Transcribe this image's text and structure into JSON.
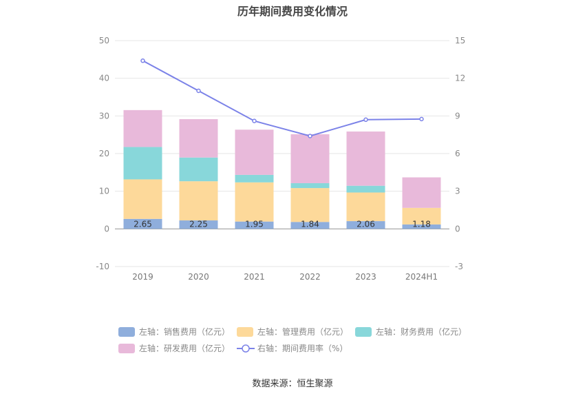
{
  "title": "历年期间费用变化情况",
  "source": "数据来源：恒生聚源",
  "colors": {
    "sales": "#8FAEDC",
    "admin": "#FDD99A",
    "finance": "#88D7DA",
    "rnd": "#E8B9DA",
    "line": "#7B82E8",
    "grid": "#E6E6E6"
  },
  "chart_data": {
    "type": "bar",
    "stacked": true,
    "categories": [
      "2019",
      "2020",
      "2021",
      "2022",
      "2023",
      "2024H1"
    ],
    "left_axis": {
      "ylim": [
        -10,
        50
      ],
      "ticks": [
        -10,
        0,
        10,
        20,
        30,
        40,
        50
      ]
    },
    "right_axis": {
      "ylim": [
        -3,
        15
      ],
      "ticks": [
        -3,
        0,
        3,
        6,
        9,
        12,
        15
      ]
    },
    "series": [
      {
        "key": "sales",
        "name": "左轴：销售费用（亿元）",
        "axis": "left",
        "type": "bar",
        "values": [
          2.65,
          2.25,
          1.95,
          1.84,
          2.06,
          1.18
        ],
        "labels": [
          "2.65",
          "2.25",
          "1.95",
          "1.84",
          "2.06",
          "1.18"
        ]
      },
      {
        "key": "admin",
        "name": "左轴：管理费用（亿元）",
        "axis": "left",
        "type": "bar",
        "values": [
          10.5,
          10.4,
          10.4,
          9.0,
          7.6,
          4.4
        ]
      },
      {
        "key": "finance",
        "name": "左轴：财务费用（亿元）",
        "axis": "left",
        "type": "bar",
        "values": [
          8.6,
          6.3,
          2.0,
          1.3,
          1.8,
          0.0
        ]
      },
      {
        "key": "rnd",
        "name": "左轴：研发费用（亿元）",
        "axis": "left",
        "type": "bar",
        "values": [
          9.8,
          10.2,
          12.0,
          13.0,
          14.4,
          8.1
        ]
      },
      {
        "key": "line",
        "name": "右轴：期间费用率（%）",
        "axis": "right",
        "type": "line",
        "values": [
          13.4,
          11.0,
          8.6,
          7.4,
          8.7,
          8.75
        ]
      }
    ],
    "legend_position": "bottom",
    "grid": true
  }
}
